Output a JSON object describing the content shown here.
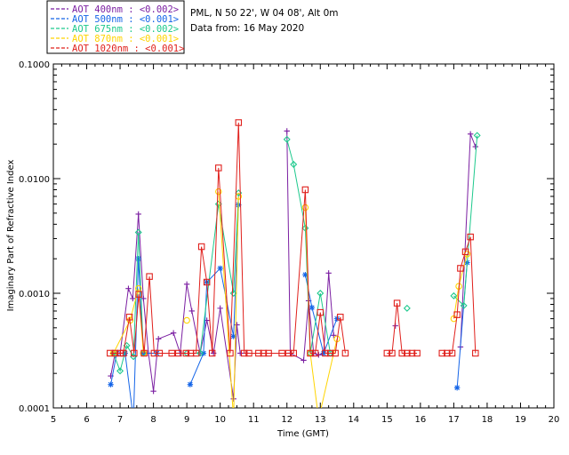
{
  "chart_data": {
    "type": "line",
    "title": "",
    "site": "PML, N 50 22', W 04 08', Alt 0m",
    "date_text": "Data from: 16 May 2020",
    "xlabel": "Time (GMT)",
    "ylabel": "Imaginary Part of Refractive Index",
    "xlim": [
      5,
      20
    ],
    "ylim": [
      0.0001,
      0.1
    ],
    "yscale": "log",
    "x_ticks": [
      "5",
      "6",
      "7",
      "8",
      "9",
      "10",
      "11",
      "12",
      "13",
      "14",
      "15",
      "16",
      "17",
      "18",
      "19",
      "20"
    ],
    "y_ticks": [
      "0.0001",
      "0.0010",
      "0.0100",
      "0.1000"
    ],
    "legend_placement": "top-left (outside plot)",
    "series": [
      {
        "name": "AOT  400nm : <0.002>",
        "color": "#7b1fa2",
        "marker": "plus",
        "x": [
          6.72,
          6.85,
          7.0,
          7.25,
          7.38,
          7.55,
          7.7,
          7.85,
          8.0,
          8.15,
          8.6,
          8.8,
          9.0,
          9.15,
          9.4,
          9.6,
          9.8,
          10.0,
          10.4,
          10.5,
          10.6,
          10.8,
          12.0,
          12.1,
          12.5,
          12.65,
          12.8,
          12.95,
          13.1,
          13.25,
          13.4,
          15.25,
          17.2,
          17.5,
          17.65
        ],
        "y": [
          0.00019,
          0.0003,
          0.0003,
          0.0011,
          0.0009,
          0.0049,
          0.0009,
          0.0003,
          0.00014,
          0.0004,
          0.00045,
          0.0003,
          0.0012,
          0.0007,
          0.0003,
          0.00058,
          0.0003,
          0.00074,
          0.00012,
          0.00053,
          0.0003,
          0.0003,
          0.026,
          0.0003,
          0.00026,
          0.00086,
          0.0003,
          0.00029,
          0.0003,
          0.0015,
          0.00043,
          0.00052,
          0.00034,
          0.0245,
          0.019
        ]
      },
      {
        "name": "AOT  500nm : <0.001>",
        "color": "#1565e8",
        "marker": "asterisk",
        "x": [
          6.72,
          6.9,
          7.15,
          7.4,
          7.55,
          7.7,
          8.1,
          9.1,
          9.5,
          9.6,
          10.0,
          10.4,
          10.55,
          12.55,
          12.75,
          13.1,
          13.5,
          17.1,
          17.4
        ],
        "y": [
          0.00016,
          0.0003,
          0.0003,
          8e-05,
          0.002,
          0.0003,
          0.0003,
          0.00016,
          0.0003,
          0.00125,
          0.00165,
          0.00042,
          0.0059,
          0.00145,
          0.00075,
          0.0003,
          0.0006,
          0.00015,
          0.00185
        ]
      },
      {
        "name": "AOT  675nm : <0.002>",
        "color": "#1ec98d",
        "marker": "diamond",
        "x": [
          6.8,
          7.0,
          7.2,
          7.4,
          7.55,
          7.7,
          9.0,
          9.4,
          9.95,
          10.4,
          10.55,
          12.0,
          12.2,
          12.55,
          12.7,
          13.0,
          13.3,
          15.6,
          17.0,
          17.3,
          17.7
        ],
        "y": [
          0.0003,
          0.00021,
          0.00035,
          0.00028,
          0.0034,
          0.0003,
          0.0003,
          0.0003,
          0.006,
          0.001,
          0.0075,
          0.022,
          0.0133,
          0.0037,
          0.0003,
          0.001,
          0.0003,
          0.00074,
          0.00095,
          0.00078,
          0.0238
        ]
      },
      {
        "name": "AOT  870nm : <0.001>",
        "color": "#ffd400",
        "marker": "circle",
        "x": [
          6.8,
          7.3,
          7.55,
          7.7,
          9.0,
          9.95,
          10.4,
          10.55,
          12.55,
          12.7,
          12.95,
          13.5,
          17.0,
          17.15,
          17.4
        ],
        "y": [
          0.0003,
          0.00058,
          0.0011,
          0.0003,
          0.00058,
          0.0077,
          8e-05,
          0.007,
          0.0056,
          0.0003,
          8e-05,
          0.0004,
          0.0006,
          0.00115,
          0.0022
        ]
      },
      {
        "name": "AOT 1020nm : <0.001>",
        "color": "#e0201c",
        "marker": "square",
        "x": [
          6.7,
          6.85,
          7.0,
          7.1,
          7.28,
          7.42,
          7.56,
          7.72,
          7.88,
          8.02,
          8.18,
          8.55,
          8.75,
          8.98,
          9.12,
          9.28,
          9.44,
          9.6,
          9.76,
          9.95,
          10.3,
          10.55,
          10.72,
          10.86,
          11.15,
          11.3,
          11.45,
          11.85,
          12.05,
          12.2,
          12.55,
          12.7,
          12.85,
          13.0,
          13.15,
          13.3,
          13.45,
          13.6,
          13.75,
          15.0,
          15.15,
          15.3,
          15.45,
          15.6,
          15.75,
          15.9,
          16.65,
          16.8,
          16.95,
          17.1,
          17.2,
          17.35,
          17.5,
          17.65
        ],
        "y": [
          0.0003,
          0.0003,
          0.0003,
          0.0003,
          0.00062,
          0.0003,
          0.00098,
          0.0003,
          0.0014,
          0.0003,
          0.0003,
          0.0003,
          0.0003,
          0.0003,
          0.0003,
          0.0003,
          0.00255,
          0.00125,
          0.0003,
          0.0124,
          0.0003,
          0.0308,
          0.0003,
          0.0003,
          0.0003,
          0.0003,
          0.0003,
          0.0003,
          0.0003,
          0.0003,
          0.008,
          0.0003,
          0.0003,
          0.00068,
          0.0003,
          0.0003,
          0.0003,
          0.00062,
          0.0003,
          0.0003,
          0.0003,
          0.00082,
          0.0003,
          0.0003,
          0.0003,
          0.0003,
          0.0003,
          0.0003,
          0.0003,
          0.00065,
          0.00165,
          0.0023,
          0.0031,
          0.0003
        ]
      }
    ]
  }
}
